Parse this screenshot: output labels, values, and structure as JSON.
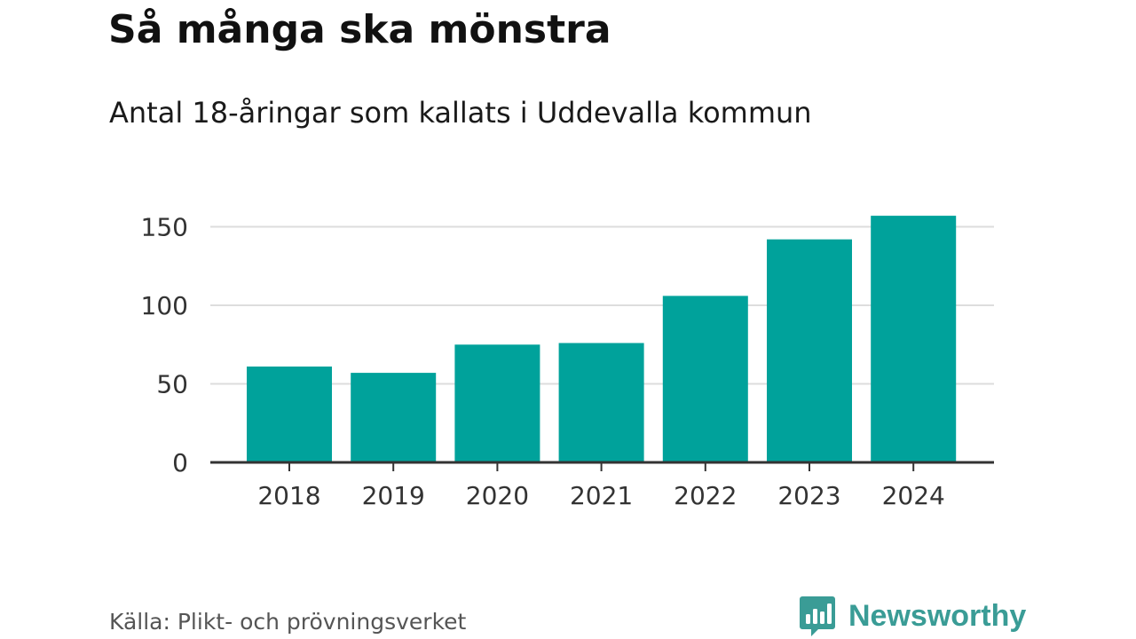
{
  "header": {
    "title": "Så många ska mönstra",
    "subtitle": "Antal 18-åringar som kallats i Uddevalla kommun"
  },
  "footer": {
    "source": "Källa: Plikt- och prövningsverket",
    "brand": "Newsworthy"
  },
  "colors": {
    "bar": "#00a29b",
    "grid": "#dddddd",
    "axis": "#333333",
    "brand": "#3a9c96"
  },
  "chart_data": {
    "type": "bar",
    "title": "Så många ska mönstra",
    "subtitle": "Antal 18-åringar som kallats i Uddevalla kommun",
    "categories": [
      "2018",
      "2019",
      "2020",
      "2021",
      "2022",
      "2023",
      "2024"
    ],
    "values": [
      61,
      57,
      75,
      76,
      106,
      142,
      157
    ],
    "xlabel": "",
    "ylabel": "",
    "ylim": [
      0,
      150
    ],
    "yticks": [
      0,
      50,
      100,
      150
    ],
    "grid": true,
    "legend": "none"
  }
}
